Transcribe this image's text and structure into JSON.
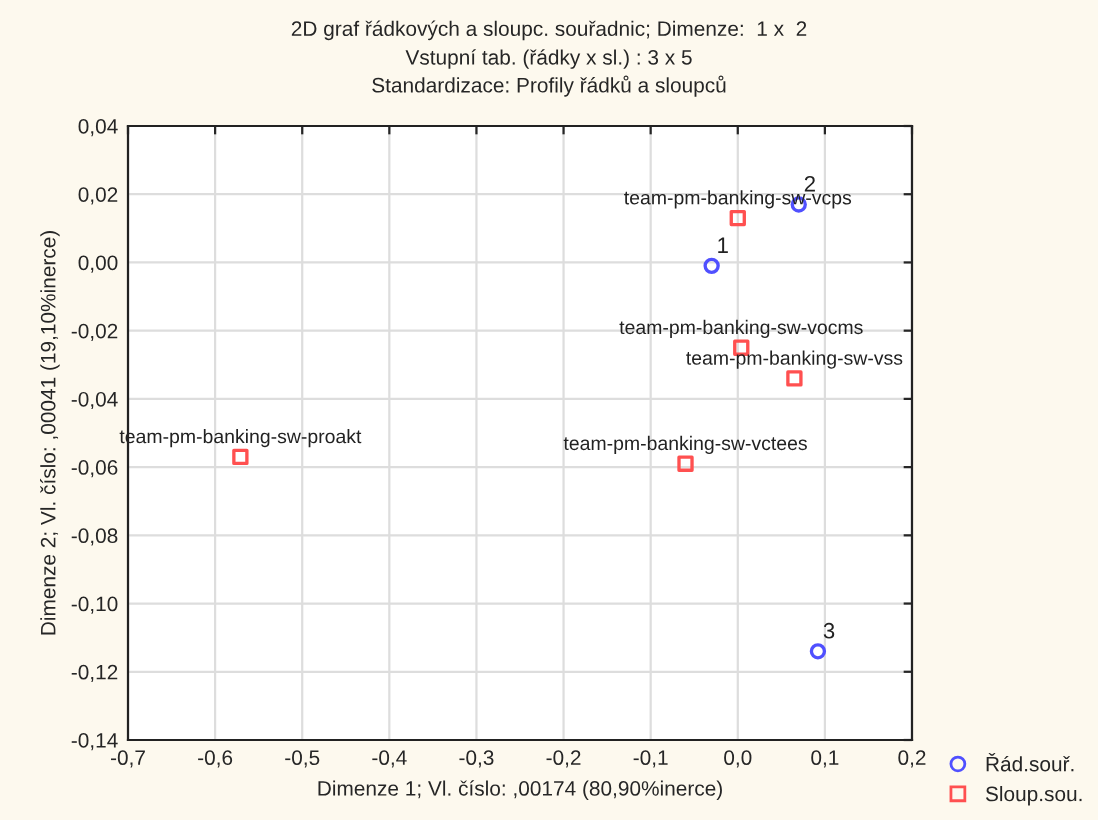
{
  "chart_data": {
    "type": "scatter",
    "title": "2D graf řádkových a sloupc. souřadnic; Dimenze:  1 x  2",
    "subtitle": "Vstupní tab. (řádky x sl.) : 3 x 5\nStandardizace: Profily řádků a sloupců",
    "xlabel": "Dimenze 1; Vl. číslo: ,00174 (80,90%inerce)",
    "ylabel": "Dimenze 2; Vl. číslo: ,00041 (19,10%inerce)",
    "series": [
      {
        "name": "Řád.souř.",
        "color": "#5050ff",
        "marker": "circle",
        "x": [
          -0.03,
          0.07,
          0.092
        ],
        "values": [
          -0.001,
          0.017,
          -0.114
        ]
      },
      {
        "name": "Sloup.sou.",
        "color": "#ff5050",
        "marker": "square",
        "x": [
          0.0,
          0.004,
          0.065,
          -0.06,
          -0.571
        ],
        "values": [
          0.013,
          -0.025,
          -0.034,
          -0.059,
          -0.057
        ]
      }
    ],
    "annotations": [
      {
        "text": "1",
        "x": -0.03,
        "y": -0.001
      },
      {
        "text": "2",
        "x": 0.07,
        "y": 0.017
      },
      {
        "text": "3",
        "x": 0.092,
        "y": -0.114
      },
      {
        "text": "team-pm-banking-sw-vcps",
        "x": 0.0,
        "y": 0.013
      },
      {
        "text": "team-pm-banking-sw-vocms",
        "x": 0.004,
        "y": -0.025
      },
      {
        "text": "team-pm-banking-sw-vss",
        "x": 0.065,
        "y": -0.034
      },
      {
        "text": "team-pm-banking-sw-vctees",
        "x": -0.06,
        "y": -0.059
      },
      {
        "text": "team-pm-banking-sw-proakt",
        "x": -0.571,
        "y": -0.057
      }
    ],
    "xlim": [
      -0.7,
      0.2
    ],
    "xticks": [
      {
        "value": -0.7,
        "label": "-0,7"
      },
      {
        "value": -0.6,
        "label": "-0,6"
      },
      {
        "value": -0.5,
        "label": "-0,5"
      },
      {
        "value": -0.4,
        "label": "-0,4"
      },
      {
        "value": -0.3,
        "label": "-0,3"
      },
      {
        "value": -0.2,
        "label": "-0,2"
      },
      {
        "value": -0.1,
        "label": "-0,1"
      },
      {
        "value": 0.0,
        "label": "0,0"
      },
      {
        "value": 0.1,
        "label": "0,1"
      },
      {
        "value": 0.2,
        "label": "0,2"
      }
    ],
    "ylim": [
      -0.14,
      0.04
    ],
    "yticks": [
      {
        "value": -0.14,
        "label": "-0,14"
      },
      {
        "value": -0.12,
        "label": "-0,12"
      },
      {
        "value": -0.1,
        "label": "-0,10"
      },
      {
        "value": -0.08,
        "label": "-0,08"
      },
      {
        "value": -0.06,
        "label": "-0,06"
      },
      {
        "value": -0.04,
        "label": "-0,04"
      },
      {
        "value": -0.02,
        "label": "-0,02"
      },
      {
        "value": 0.0,
        "label": "0,00"
      },
      {
        "value": 0.02,
        "label": "0,02"
      },
      {
        "value": 0.04,
        "label": "0,04"
      }
    ],
    "grid": true,
    "legend": "bottom right"
  }
}
